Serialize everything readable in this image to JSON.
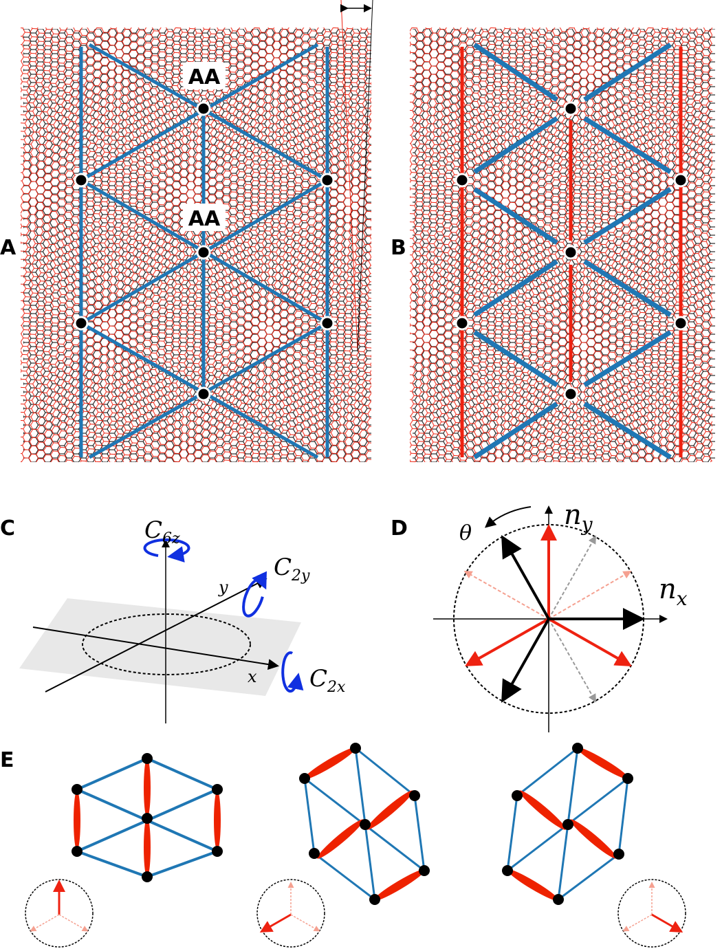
{
  "panels": {
    "a": {
      "label": "A",
      "markers": [
        "AA",
        "AA"
      ]
    },
    "b": {
      "label": "B"
    },
    "c": {
      "label": "C",
      "c6z": {
        "base": "C",
        "sub": "6z"
      },
      "c2y": {
        "base": "C",
        "sub": "2y"
      },
      "c2x": {
        "base": "C",
        "sub": "2x"
      },
      "axis_x": "x",
      "axis_y": "y"
    },
    "d": {
      "label": "D",
      "theta": "θ",
      "ny": {
        "base": "n",
        "sub": "y"
      },
      "nx": {
        "base": "n",
        "sub": "x"
      }
    },
    "e": {
      "label": "E"
    }
  },
  "colors": {
    "lattice_black": "#000000",
    "lattice_red": "#ee2211",
    "domain_wall_blue": "#1f77b4",
    "bond_red": "#ee2200",
    "rotation_blue": "#1030e0",
    "plane_gray": "#e6e6e6"
  }
}
